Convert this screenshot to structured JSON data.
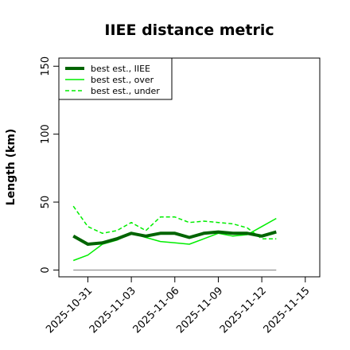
{
  "chart_data": {
    "type": "line",
    "title": "IIEE distance metric",
    "xlabel": "",
    "ylabel": "Length (km)",
    "xlim": [
      "2025-10-29",
      "2025-11-16"
    ],
    "ylim": [
      -5,
      156
    ],
    "x_ticks": [
      "2025-10-31",
      "2025-11-03",
      "2025-11-06",
      "2025-11-09",
      "2025-11-12",
      "2025-11-15"
    ],
    "y_ticks": [
      0,
      50,
      100,
      150
    ],
    "grid": false,
    "legend_position": "top-left",
    "x": [
      "2025-10-30",
      "2025-10-31",
      "2025-11-01",
      "2025-11-02",
      "2025-11-03",
      "2025-11-04",
      "2025-11-05",
      "2025-11-06",
      "2025-11-07",
      "2025-11-08",
      "2025-11-09",
      "2025-11-10",
      "2025-11-11",
      "2025-11-12",
      "2025-11-13"
    ],
    "series": [
      {
        "name": "best est., IIEE",
        "color": "#006400",
        "style": "solid",
        "width": 4,
        "values": [
          25,
          19,
          20,
          23,
          27,
          25,
          27,
          27,
          24,
          27,
          28,
          27,
          27,
          25,
          28
        ]
      },
      {
        "name": "best est., over",
        "color": "#00ee00",
        "style": "solid",
        "width": 1.5,
        "values": [
          7,
          11,
          19,
          22,
          27,
          24,
          21,
          20,
          19,
          23,
          27,
          25,
          26,
          32,
          38
        ]
      },
      {
        "name": "best est., under",
        "color": "#00ee00",
        "style": "dashed",
        "width": 1.5,
        "values": [
          47,
          32,
          27,
          29,
          35,
          29,
          39,
          39,
          35,
          36,
          35,
          34,
          31,
          23,
          23
        ]
      },
      {
        "name": "",
        "color": "#808080",
        "style": "solid",
        "width": 1,
        "values": [
          0,
          0,
          0,
          0,
          0,
          0,
          0,
          0,
          0,
          0,
          0,
          0,
          0,
          0,
          0
        ]
      }
    ]
  }
}
